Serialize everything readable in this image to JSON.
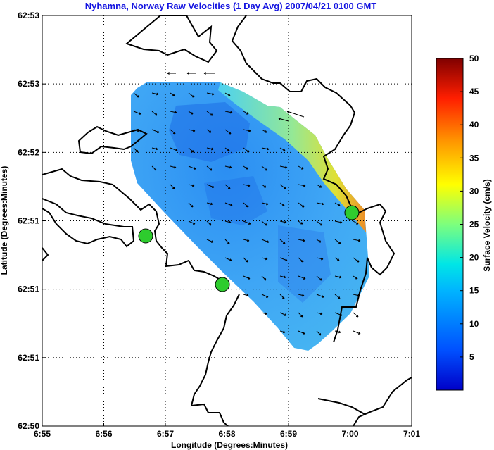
{
  "chart_data": {
    "type": "heatmap",
    "title": "Nyhamna, Norway Raw Velocities (1 Day Avg) 2007/04/21 0100 GMT",
    "xlabel": "Longitude (Degrees:Minutes)",
    "ylabel": "Latitude (Degrees:Minutes)",
    "x_ticks": [
      "6:55",
      "6:56",
      "6:57",
      "6:58",
      "6:59",
      "7:00",
      "7:01"
    ],
    "y_ticks": [
      "62:53",
      "62:53",
      "62:52",
      "62:51",
      "62:51",
      "62:51",
      "62:50"
    ],
    "xlim_minutes": [
      55,
      61
    ],
    "grid": true,
    "colorbar": {
      "label": "Surface Velocity (cm/s)",
      "range": [
        0,
        50
      ],
      "ticks": [
        "5",
        "10",
        "15",
        "20",
        "25",
        "30",
        "35",
        "40",
        "45",
        "50"
      ],
      "colormap": "jet"
    },
    "stations": [
      {
        "lon_min": 56.7,
        "color": "#2ecc2e"
      },
      {
        "lon_min": 57.92,
        "color": "#2ecc2e"
      },
      {
        "lon_min": 60.0,
        "color": "#2ecc2e"
      }
    ],
    "field_summary": {
      "typical_speed_cm_s": 5,
      "max_speed_cm_s": 28,
      "max_location": "northeast edge near 7:00"
    }
  }
}
